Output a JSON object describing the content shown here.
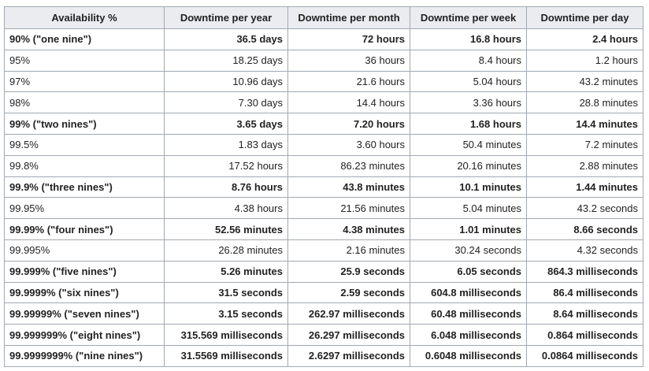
{
  "table": {
    "headers": [
      "Availability %",
      "Downtime per year",
      "Downtime per month",
      "Downtime per week",
      "Downtime per day"
    ],
    "rows": [
      [
        "90% (\"one nine\")",
        "36.5 days",
        "72 hours",
        "16.8 hours",
        "2.4 hours"
      ],
      [
        "95%",
        "18.25 days",
        "36 hours",
        "8.4 hours",
        "1.2 hours"
      ],
      [
        "97%",
        "10.96 days",
        "21.6 hours",
        "5.04 hours",
        "43.2 minutes"
      ],
      [
        "98%",
        "7.30 days",
        "14.4 hours",
        "3.36 hours",
        "28.8 minutes"
      ],
      [
        "99% (\"two nines\")",
        "3.65 days",
        "7.20 hours",
        "1.68 hours",
        "14.4 minutes"
      ],
      [
        "99.5%",
        "1.83 days",
        "3.60 hours",
        "50.4 minutes",
        "7.2 minutes"
      ],
      [
        "99.8%",
        "17.52 hours",
        "86.23 minutes",
        "20.16 minutes",
        "2.88 minutes"
      ],
      [
        "99.9% (\"three nines\")",
        "8.76 hours",
        "43.8 minutes",
        "10.1 minutes",
        "1.44 minutes"
      ],
      [
        "99.95%",
        "4.38 hours",
        "21.56 minutes",
        "5.04 minutes",
        "43.2 seconds"
      ],
      [
        "99.99% (\"four nines\")",
        "52.56 minutes",
        "4.38 minutes",
        "1.01 minutes",
        "8.66 seconds"
      ],
      [
        "99.995%",
        "26.28 minutes",
        "2.16 minutes",
        "30.24 seconds",
        "4.32 seconds"
      ],
      [
        "99.999% (\"five nines\")",
        "5.26 minutes",
        "25.9 seconds",
        "6.05 seconds",
        "864.3 milliseconds"
      ],
      [
        "99.9999% (\"six nines\")",
        "31.5 seconds",
        "2.59 seconds",
        "604.8 milliseconds",
        "86.4 milliseconds"
      ],
      [
        "99.99999% (\"seven nines\")",
        "3.15 seconds",
        "262.97 milliseconds",
        "60.48 milliseconds",
        "8.64 milliseconds"
      ],
      [
        "99.999999% (\"eight nines\")",
        "315.569 milliseconds",
        "26.297 milliseconds",
        "6.048 milliseconds",
        "0.864 milliseconds"
      ],
      [
        "99.9999999% (\"nine nines\")",
        "31.5569 milliseconds",
        "2.6297 milliseconds",
        "0.6048 milliseconds",
        "0.0864 milliseconds"
      ]
    ]
  }
}
